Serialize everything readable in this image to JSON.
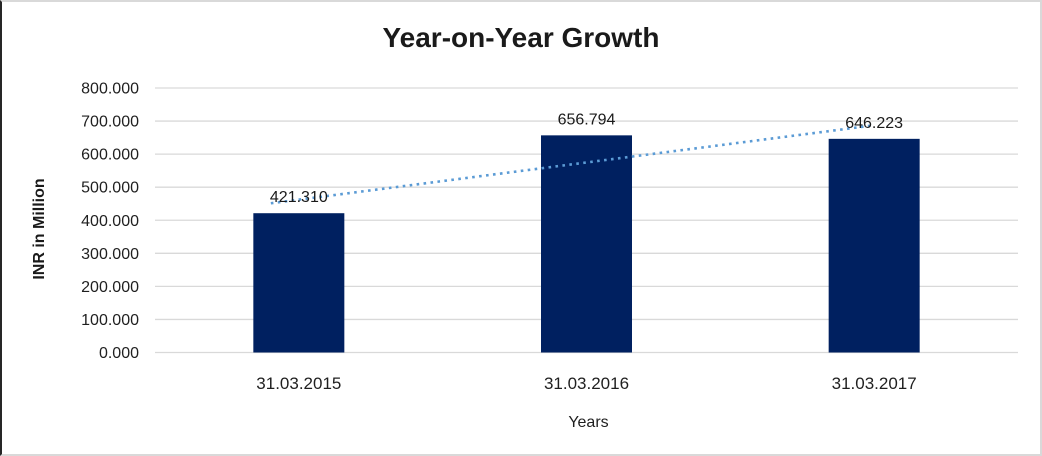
{
  "chart_data": {
    "type": "bar",
    "title": "Year-on-Year Growth",
    "xlabel": "Years",
    "ylabel": "INR in Million",
    "categories": [
      "31.03.2015",
      "31.03.2016",
      "31.03.2017"
    ],
    "values": [
      421.31,
      656.794,
      646.223
    ],
    "data_labels": [
      "421.310",
      "656.794",
      "646.223"
    ],
    "y_ticks": [
      "800.000",
      "700.000",
      "600.000",
      "500.000",
      "400.000",
      "300.000",
      "200.000",
      "100.000",
      "0.000"
    ],
    "ylim": [
      0,
      800
    ],
    "y_tick_step": 100,
    "grid": true,
    "legend": "none",
    "bar_color": "#002060",
    "gridline_color": "#d9d9d9",
    "label_color": "#1a1a1a",
    "tick_color": "#1f1f1f",
    "trendline": {
      "type": "linear",
      "style": "dotted",
      "color": "#5b9bd5"
    }
  }
}
